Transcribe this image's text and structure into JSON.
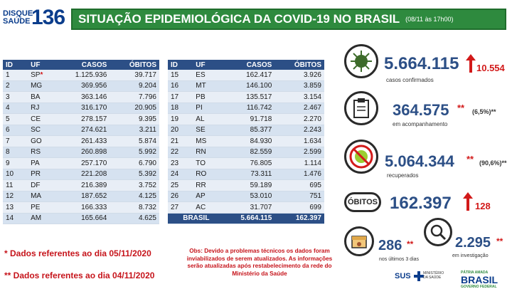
{
  "header": {
    "logo_line1": "DISQUE",
    "logo_line2": "SAÚDE",
    "logo_number": "136",
    "title": "SITUAÇÃO EPIDEMIOLÓGICA DA COVID-19 NO BRASIL",
    "date": "(08/11 às 17h00)"
  },
  "table": {
    "headers": [
      "ID",
      "UF",
      "CASOS",
      "ÓBITOS"
    ],
    "left_rows": [
      [
        "1",
        "SP",
        "1.125.936",
        "39.717"
      ],
      [
        "2",
        "MG",
        "369.956",
        "9.204"
      ],
      [
        "3",
        "BA",
        "363.146",
        "7.796"
      ],
      [
        "4",
        "RJ",
        "316.170",
        "20.905"
      ],
      [
        "5",
        "CE",
        "278.157",
        "9.395"
      ],
      [
        "6",
        "SC",
        "274.621",
        "3.211"
      ],
      [
        "7",
        "GO",
        "261.433",
        "5.874"
      ],
      [
        "8",
        "RS",
        "260.898",
        "5.992"
      ],
      [
        "9",
        "PA",
        "257.170",
        "6.790"
      ],
      [
        "10",
        "PR",
        "221.208",
        "5.392"
      ],
      [
        "11",
        "DF",
        "216.389",
        "3.752"
      ],
      [
        "12",
        "MA",
        "187.652",
        "4.125"
      ],
      [
        "13",
        "PE",
        "166.333",
        "8.732"
      ],
      [
        "14",
        "AM",
        "165.664",
        "4.625"
      ]
    ],
    "right_rows": [
      [
        "15",
        "ES",
        "162.417",
        "3.926"
      ],
      [
        "16",
        "MT",
        "146.100",
        "3.859"
      ],
      [
        "17",
        "PB",
        "135.517",
        "3.154"
      ],
      [
        "18",
        "PI",
        "116.742",
        "2.467"
      ],
      [
        "19",
        "AL",
        "91.718",
        "2.270"
      ],
      [
        "20",
        "SE",
        "85.377",
        "2.243"
      ],
      [
        "21",
        "MS",
        "84.930",
        "1.634"
      ],
      [
        "22",
        "RN",
        "82.559",
        "2.599"
      ],
      [
        "23",
        "TO",
        "76.805",
        "1.114"
      ],
      [
        "24",
        "RO",
        "73.311",
        "1.476"
      ],
      [
        "25",
        "RR",
        "59.189",
        "695"
      ],
      [
        "26",
        "AP",
        "53.010",
        "751"
      ],
      [
        "27",
        "AC",
        "31.707",
        "699"
      ]
    ],
    "total": [
      "BRASIL",
      "5.664.115",
      "162.397"
    ]
  },
  "notes": {
    "note1": "* Dados referentes ao dia 05/11/2020",
    "note2": "** Dados referentes ao dia 04/11/2020",
    "obs": "Obs: Devido a problemas técnicos os dados foram inviabilizados de serem atualizados. As informações serão atualizadas após restabelecimento da rede do Ministério da Saúde"
  },
  "stats": {
    "confirmed": {
      "value": "5.664.115",
      "delta": "10.554",
      "label": "casos confirmados",
      "icon": "virus-icon"
    },
    "monitoring": {
      "value": "364.575",
      "stars": "**",
      "pct": "(6,5%)**",
      "label": "em acompanhamento",
      "icon": "clipboard-icon"
    },
    "recovered": {
      "value": "5.064.344",
      "stars": "**",
      "pct": "(90,6%)**",
      "label": "recuperados",
      "icon": "virus-crossed-icon"
    },
    "deaths": {
      "pill": "ÓBITOS",
      "value": "162.397",
      "delta": "128"
    },
    "last3": {
      "value": "286",
      "stars": "**",
      "label": "nos últimos 3 dias",
      "icon": "calendar-icon"
    },
    "investigating": {
      "value": "2.295",
      "stars": "**",
      "label": "em investigação",
      "icon": "magnifier-icon"
    }
  },
  "footer": {
    "sus": "SUS",
    "ministry": "MINISTÉRIO DA SAÚDE",
    "gov_tag": "PÁTRIA AMADA",
    "gov": "BRASIL",
    "gov_sub": "GOVERNO FEDERAL"
  },
  "colors": {
    "accent_green": "#2e8a3e",
    "table_blue": "#2c4f86",
    "alert_red": "#d21a1a"
  }
}
